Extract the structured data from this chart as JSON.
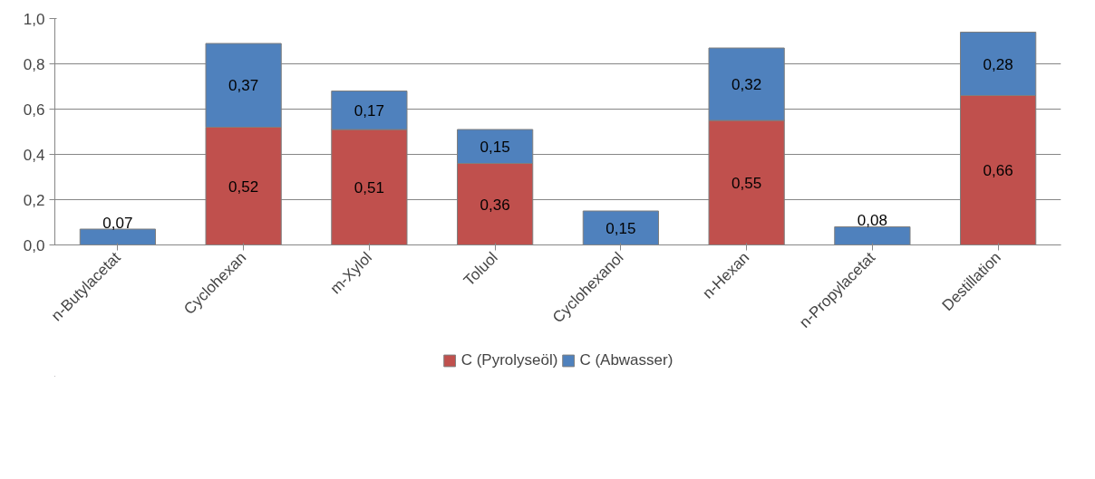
{
  "chart_data": {
    "type": "bar",
    "stacked": true,
    "categories": [
      "n-Butylacetat",
      "Cyclohexan",
      "m-Xylol",
      "Toluol",
      "Cyclohexanol",
      "n-Hexan",
      "n-Propylacetat",
      "Destillation"
    ],
    "series": [
      {
        "name": "C (Pyrolyseöl)",
        "color": "#c0504d",
        "values": [
          null,
          0.52,
          0.51,
          0.36,
          null,
          0.55,
          null,
          0.66
        ],
        "value_labels": [
          null,
          "0,52",
          "0,51",
          "0,36",
          null,
          "0,55",
          null,
          "0,66"
        ]
      },
      {
        "name": "C (Abwasser)",
        "color": "#4f81bd",
        "values": [
          0.07,
          0.37,
          0.17,
          0.15,
          0.15,
          0.32,
          0.08,
          0.28
        ],
        "value_labels": [
          "0,07",
          "0,37",
          "0,17",
          "0,15",
          "0,15",
          "0,32",
          "0,08",
          "0,28"
        ]
      }
    ],
    "ylim": [
      0,
      1
    ],
    "yticks": [
      {
        "value": 0,
        "label": "0,0"
      },
      {
        "value": 0.2,
        "label": "0,2"
      },
      {
        "value": 0.4,
        "label": "0,4"
      },
      {
        "value": 0.6,
        "label": "0,6"
      },
      {
        "value": 0.8,
        "label": "0,8"
      },
      {
        "value": 1,
        "label": "1,0"
      }
    ],
    "grid": "y",
    "legend": "bottom"
  }
}
